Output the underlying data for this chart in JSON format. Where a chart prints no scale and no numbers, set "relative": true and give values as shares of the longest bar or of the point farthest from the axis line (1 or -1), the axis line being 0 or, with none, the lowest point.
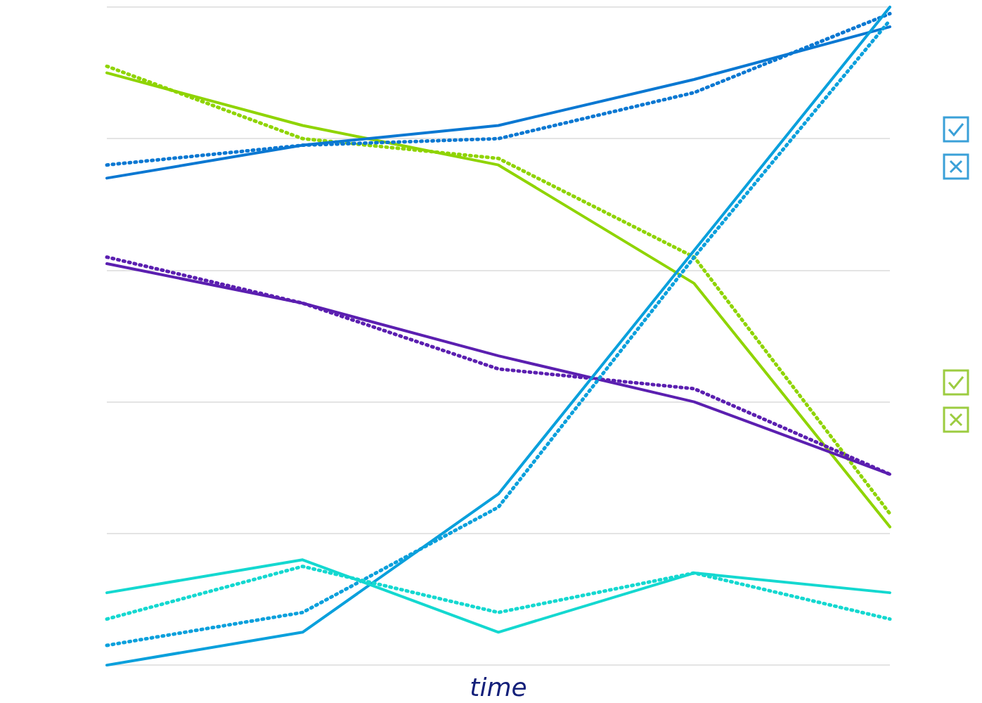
{
  "chart_data": {
    "type": "line",
    "xlabel": "time",
    "categories": [
      null,
      null,
      null,
      null,
      null
    ],
    "relative": true,
    "grid": "y",
    "marker": "none",
    "series": [
      {
        "color": "#8fd400",
        "line_style": "solid",
        "values": [
          0.9,
          0.82,
          0.76,
          0.58,
          0.21
        ]
      },
      {
        "color": "#8fd400",
        "line_style": "dotted",
        "values": [
          0.91,
          0.8,
          0.77,
          0.62,
          0.23
        ]
      },
      {
        "color": "#0a78d2",
        "line_style": "solid",
        "values": [
          0.74,
          0.79,
          0.82,
          0.89,
          0.97
        ]
      },
      {
        "color": "#0a78d2",
        "line_style": "dotted",
        "values": [
          0.76,
          0.79,
          0.8,
          0.87,
          0.99
        ]
      },
      {
        "color": "#5b1fb0",
        "line_style": "solid",
        "values": [
          0.61,
          0.55,
          0.47,
          0.4,
          0.29
        ]
      },
      {
        "color": "#5b1fb0",
        "line_style": "dotted",
        "values": [
          0.62,
          0.55,
          0.45,
          0.42,
          0.29
        ]
      },
      {
        "color": "#0aa0dc",
        "line_style": "solid",
        "values": [
          0,
          0.05,
          0.26,
          0.63,
          1
        ]
      },
      {
        "color": "#0aa0dc",
        "line_style": "dotted",
        "values": [
          0.03,
          0.08,
          0.24,
          0.62,
          0.98
        ]
      },
      {
        "color": "#14d8d0",
        "line_style": "solid",
        "values": [
          0.11,
          0.16,
          0.05,
          0.14,
          0.11
        ]
      },
      {
        "color": "#14d8d0",
        "line_style": "dotted",
        "values": [
          0.07,
          0.15,
          0.08,
          0.14,
          0.07
        ]
      }
    ]
  }
}
